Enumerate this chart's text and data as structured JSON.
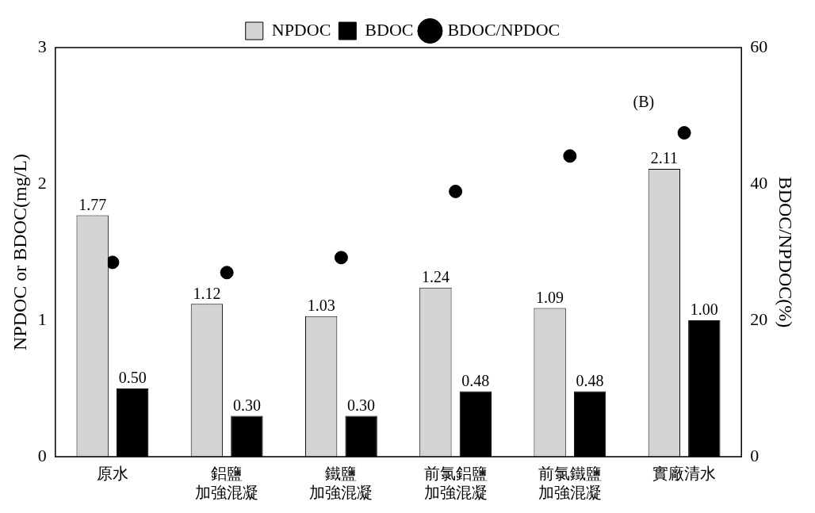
{
  "chart_data": {
    "type": "bar",
    "categories": [
      "原水",
      "鋁鹽加強混凝",
      "鐵鹽加強混凝",
      "前氯鋁鹽加強混凝",
      "前氯鐵鹽加強混凝",
      "實廠清水"
    ],
    "series": [
      {
        "name": "NPDOC",
        "color": "#d4d4d4",
        "values": [
          1.77,
          1.12,
          1.03,
          1.24,
          1.09,
          2.11
        ],
        "value_labels": [
          "1.77",
          "1.12",
          "1.03",
          "1.24",
          "1.09",
          "2.11"
        ]
      },
      {
        "name": "BDOC",
        "color": "#000000",
        "values": [
          0.5,
          0.3,
          0.3,
          0.48,
          0.48,
          1.0
        ],
        "value_labels": [
          "0.50",
          "0.30",
          "0.30",
          "0.48",
          "0.48",
          "1.00"
        ]
      },
      {
        "name": "BDOC/NPDOC",
        "type": "scatter",
        "color": "#000000",
        "axis": "y2",
        "values": [
          28.5,
          27,
          29.2,
          38.9,
          44.1,
          47.5
        ]
      }
    ],
    "ylabel": "NPDOC or BDOC(mg/L)",
    "y2label": "BDOC/NPDOC(%)",
    "ylim": [
      0,
      3
    ],
    "yticks": [
      0,
      1,
      2,
      3
    ],
    "y2lim": [
      0,
      60
    ],
    "y2ticks": [
      0,
      20,
      40,
      60
    ],
    "grid": false,
    "legend": "top",
    "marker": "circle",
    "annotations": [
      "(B)"
    ]
  }
}
